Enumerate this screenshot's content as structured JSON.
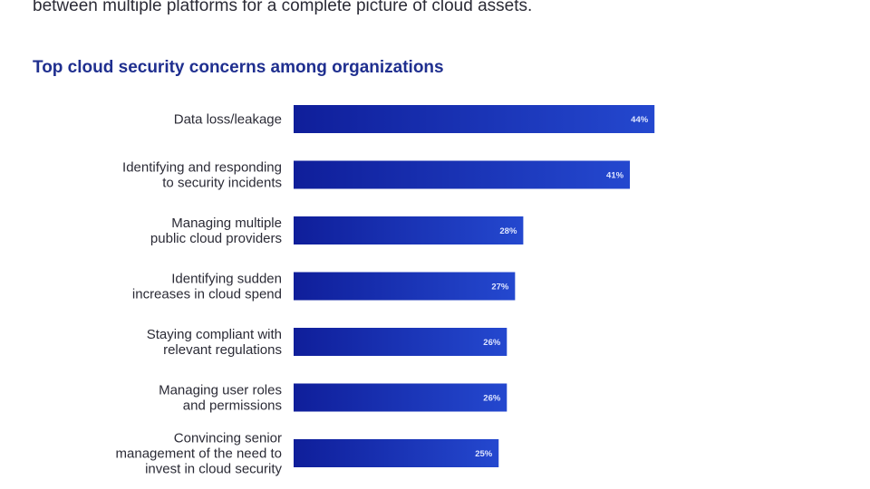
{
  "intro": {
    "text": "between multiple platforms for a complete picture of cloud assets."
  },
  "chart_data": {
    "type": "bar",
    "orientation": "horizontal",
    "title": "Top cloud security concerns among organizations",
    "xlabel": "",
    "ylabel": "",
    "xlim": [
      0,
      100
    ],
    "grid": false,
    "legend": "none",
    "bar_color": "#1a2aa8",
    "bar_gradient": [
      "#0f1e9a",
      "#2448cf"
    ],
    "categories": [
      [
        "Data loss/leakage"
      ],
      [
        "Identifying and responding",
        "to security incidents"
      ],
      [
        "Managing multiple",
        "public cloud providers"
      ],
      [
        "Identifying sudden",
        "increases in cloud spend"
      ],
      [
        "Staying compliant with",
        "relevant regulations"
      ],
      [
        "Managing user roles",
        "and permissions"
      ],
      [
        "Convincing senior",
        "management of the need to",
        "invest in cloud security"
      ]
    ],
    "values": [
      44,
      41,
      28,
      27,
      26,
      26,
      25
    ],
    "value_labels": [
      "44%",
      "41%",
      "28%",
      "27%",
      "26%",
      "26%",
      "25%"
    ]
  }
}
